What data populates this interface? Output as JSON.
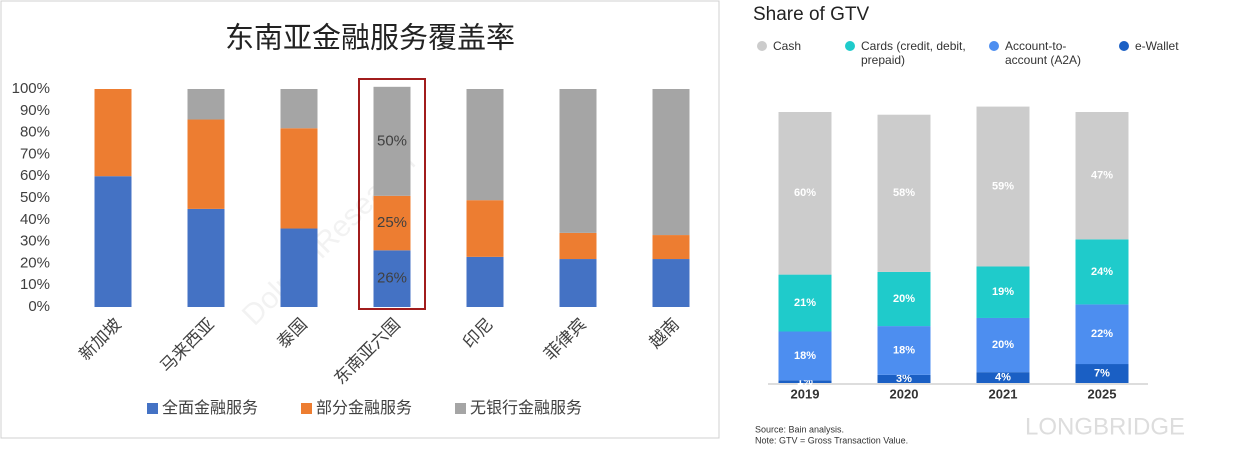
{
  "chart_data": [
    {
      "type": "bar",
      "stacked": true,
      "title": "东南亚金融服务覆盖率",
      "categories": [
        "新加坡",
        "马来西亚",
        "泰国",
        "东南亚六国",
        "印尼",
        "菲律宾",
        "越南"
      ],
      "series": [
        {
          "name": "全面金融服务",
          "color": "#4472c4",
          "values": [
            60,
            45,
            36,
            26,
            23,
            22,
            22
          ],
          "value_labels": [
            null,
            null,
            null,
            "26%",
            null,
            null,
            null
          ]
        },
        {
          "name": "部分金融服务",
          "color": "#ed7d31",
          "values": [
            40,
            41,
            46,
            25,
            26,
            12,
            11
          ],
          "value_labels": [
            null,
            null,
            null,
            "25%",
            null,
            null,
            null
          ]
        },
        {
          "name": "无银行金融服务",
          "color": "#a5a5a5",
          "values": [
            0,
            14,
            18,
            50,
            51,
            66,
            67
          ],
          "value_labels": [
            null,
            null,
            null,
            "50%",
            null,
            null,
            null
          ]
        }
      ],
      "ylim": [
        0,
        100
      ],
      "yticks": [
        {
          "value": 0,
          "label": "0%"
        },
        {
          "value": 10,
          "label": "10%"
        },
        {
          "value": 20,
          "label": "20%"
        },
        {
          "value": 30,
          "label": "30%"
        },
        {
          "value": 40,
          "label": "40%"
        },
        {
          "value": 50,
          "label": "50%"
        },
        {
          "value": 60,
          "label": "60%"
        },
        {
          "value": 70,
          "label": "70%"
        },
        {
          "value": 80,
          "label": "80%"
        },
        {
          "value": 90,
          "label": "90%"
        },
        {
          "value": 100,
          "label": "100%"
        }
      ],
      "grid": false,
      "legend": "bottom"
    },
    {
      "type": "bar",
      "stacked": true,
      "title": "Share of GTV",
      "categories": [
        "2019",
        "2020",
        "2021",
        "2025"
      ],
      "series": [
        {
          "name": "e-Wallet",
          "color": "#1a5fc4",
          "values": [
            1,
            3,
            4,
            7
          ],
          "value_labels": [
            "1%",
            "3%",
            "4%",
            "7%"
          ]
        },
        {
          "name": "Account-to-account (A2A)",
          "color": "#4d8ef0",
          "values": [
            18,
            18,
            20,
            22
          ],
          "value_labels": [
            "18%",
            "18%",
            "20%",
            "22%"
          ]
        },
        {
          "name": "Cards (credit, debit, prepaid)",
          "color": "#1fcbcb",
          "values": [
            21,
            20,
            19,
            24
          ],
          "value_labels": [
            "21%",
            "20%",
            "19%",
            "24%"
          ]
        },
        {
          "name": "Cash",
          "color": "#cccccc",
          "values": [
            60,
            58,
            59,
            47
          ],
          "value_labels": [
            "60%",
            "58%",
            "59%",
            "47%"
          ]
        }
      ],
      "legend": "top",
      "source": "Source: Bain analysis.",
      "note": "Note: GTV = Gross Transaction Value."
    }
  ],
  "watermarks": [
    "DolphinResearch",
    "LONGBRIDGE"
  ]
}
